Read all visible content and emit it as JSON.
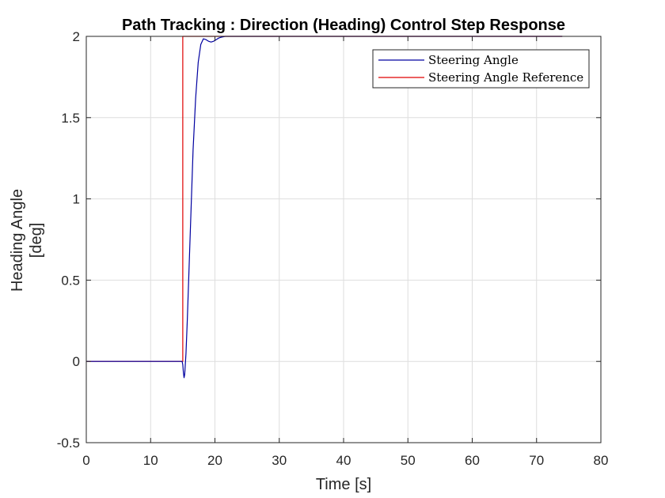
{
  "chart_data": {
    "type": "line",
    "title": "Path Tracking : Direction (Heading) Control Step Response",
    "xlabel": "Time [s]",
    "ylabel_lines": [
      "Heading Angle",
      "[deg]"
    ],
    "xlim": [
      0,
      80
    ],
    "ylim": [
      -0.5,
      2
    ],
    "xticks": [
      0,
      10,
      20,
      30,
      40,
      50,
      60,
      70,
      80
    ],
    "yticks": [
      -0.5,
      0,
      0.5,
      1,
      1.5,
      2
    ],
    "xtick_labels": [
      "0",
      "10",
      "20",
      "30",
      "40",
      "50",
      "60",
      "70",
      "80"
    ],
    "ytick_labels": [
      "-0.5",
      "0",
      "0.5",
      "1",
      "1.5",
      "2"
    ],
    "grid": true,
    "legend_position": "top-right",
    "series": [
      {
        "name": "Steering Angle",
        "color": "#0000a0",
        "x": [
          0,
          14.9,
          15.0,
          15.1,
          15.2,
          15.3,
          15.5,
          15.7,
          16.0,
          16.3,
          16.6,
          17.0,
          17.4,
          17.8,
          18.2,
          18.6,
          19.0,
          19.4,
          19.8,
          20.2,
          20.6,
          21.0,
          21.6,
          22.2,
          23.0,
          74
        ],
        "y": [
          0,
          0,
          -0.02,
          -0.07,
          -0.1,
          -0.08,
          0.05,
          0.25,
          0.6,
          0.95,
          1.3,
          1.62,
          1.84,
          1.95,
          1.985,
          1.98,
          1.97,
          1.965,
          1.97,
          1.98,
          1.99,
          1.995,
          2.0,
          2.0,
          2.0,
          2.0
        ]
      },
      {
        "name": "Steering Angle Reference",
        "color": "#e00000",
        "x": [
          0,
          15,
          15,
          74
        ],
        "y": [
          0,
          0,
          2,
          2
        ]
      }
    ]
  }
}
